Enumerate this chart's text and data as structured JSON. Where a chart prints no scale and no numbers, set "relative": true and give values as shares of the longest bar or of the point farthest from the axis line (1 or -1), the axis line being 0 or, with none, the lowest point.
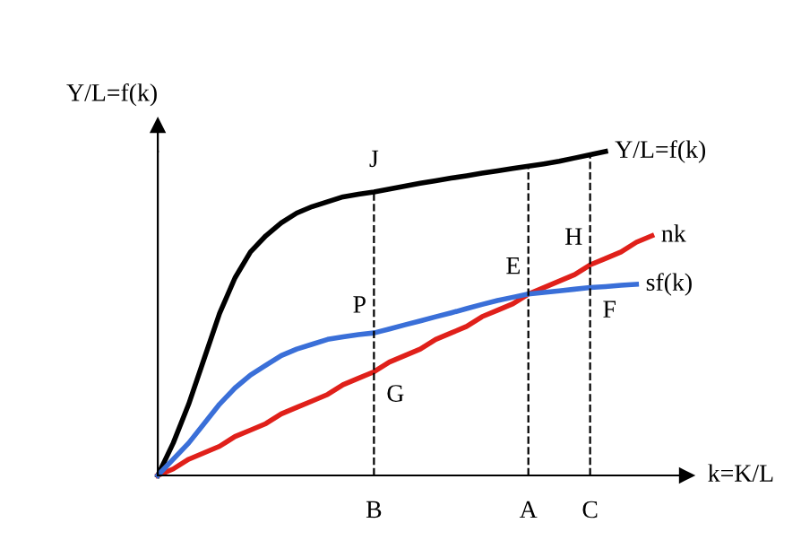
{
  "chart_data": {
    "type": "line",
    "relative": true,
    "xlabel": "k=K/L",
    "ylabel": "Y/L=f(k)",
    "legend": false,
    "tick_labels": "x",
    "categories": [
      null,
      null,
      null,
      null,
      null,
      null,
      null,
      null,
      null,
      null,
      null,
      null,
      null,
      null,
      "B",
      null,
      null,
      null,
      null,
      null,
      null,
      null,
      null,
      null,
      "A",
      null,
      null,
      null,
      "C",
      null,
      null,
      null,
      null
    ],
    "series": [
      {
        "name": "Y/L=f(k)",
        "color": "#000000",
        "values": [
          0,
          0.1,
          0.22,
          0.36,
          0.5,
          0.61,
          0.69,
          0.74,
          0.78,
          0.81,
          0.83,
          0.845,
          0.86,
          0.868,
          0.875,
          0.884,
          0.893,
          0.902,
          0.91,
          0.918,
          0.925,
          0.933,
          0.94,
          0.948,
          0.955,
          0.962,
          0.97,
          0.98,
          0.99,
          1.0,
          null,
          null,
          null
        ]
      },
      {
        "name": "nk",
        "color": "#e0201a",
        "values": [
          0,
          0.02,
          0.05,
          0.07,
          0.09,
          0.12,
          0.14,
          0.16,
          0.19,
          0.21,
          0.23,
          0.25,
          0.28,
          0.3,
          0.32,
          0.35,
          0.37,
          0.39,
          0.42,
          0.44,
          0.46,
          0.49,
          0.51,
          0.53,
          0.56,
          0.58,
          0.6,
          0.62,
          0.65,
          0.67,
          0.69,
          0.72,
          0.74
        ]
      },
      {
        "name": "sf(k)",
        "color": "#3a6fd8",
        "values": [
          0,
          0.05,
          0.1,
          0.16,
          0.22,
          0.27,
          0.31,
          0.34,
          0.37,
          0.39,
          0.405,
          0.42,
          0.428,
          0.435,
          0.44,
          0.452,
          0.465,
          0.477,
          0.49,
          0.502,
          0.515,
          0.528,
          0.54,
          0.55,
          0.56,
          0.565,
          0.57,
          0.575,
          0.58,
          0.583,
          0.587,
          0.59,
          null
        ]
      }
    ],
    "ref_lines": [
      {
        "axis": "x",
        "value": "B",
        "line_style": "dashed",
        "color": "#000000"
      },
      {
        "axis": "x",
        "value": "A",
        "line_style": "dashed",
        "color": "#000000"
      },
      {
        "axis": "x",
        "value": "C",
        "line_style": "dashed",
        "color": "#000000"
      }
    ],
    "annotations": [
      {
        "text": "J",
        "x": "B",
        "y": 0.875
      },
      {
        "text": "P",
        "x": "B",
        "y": 0.44
      },
      {
        "text": "G",
        "x": "B",
        "y": 0.32
      },
      {
        "text": "E",
        "x": "A",
        "y": 0.56
      },
      {
        "text": "H",
        "x": "C",
        "y": 0.65
      },
      {
        "text": "F",
        "x": "C",
        "y": 0.58
      }
    ]
  }
}
